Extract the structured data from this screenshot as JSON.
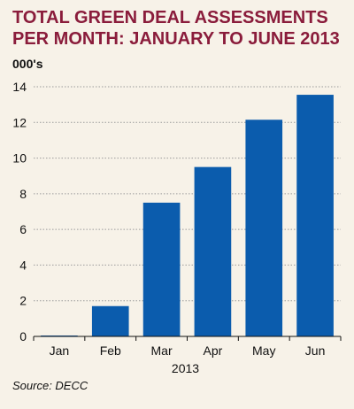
{
  "title": "TOTAL GREEN DEAL ASSESSMENTS PER MONTH: JANUARY TO JUNE 2013",
  "ylabel_text": "000's",
  "source": "Source: DECC",
  "colors": {
    "title": "#8a1c3b",
    "bar": "#0b5cad",
    "background": "#f7f2e8",
    "grid": "#9a9a9a"
  },
  "chart_data": {
    "type": "bar",
    "title": "TOTAL GREEN DEAL ASSESSMENTS PER MONTH: JANUARY TO JUNE 2013",
    "ylabel": "000's",
    "xlabel": "2013",
    "categories": [
      "Jan",
      "Feb",
      "Mar",
      "Apr",
      "May",
      "Jun"
    ],
    "values": [
      0.05,
      1.7,
      7.5,
      9.5,
      12.15,
      13.55
    ],
    "ylim": [
      0,
      14
    ],
    "yticks": [
      0,
      2,
      4,
      6,
      8,
      10,
      12,
      14
    ],
    "grid": true
  }
}
